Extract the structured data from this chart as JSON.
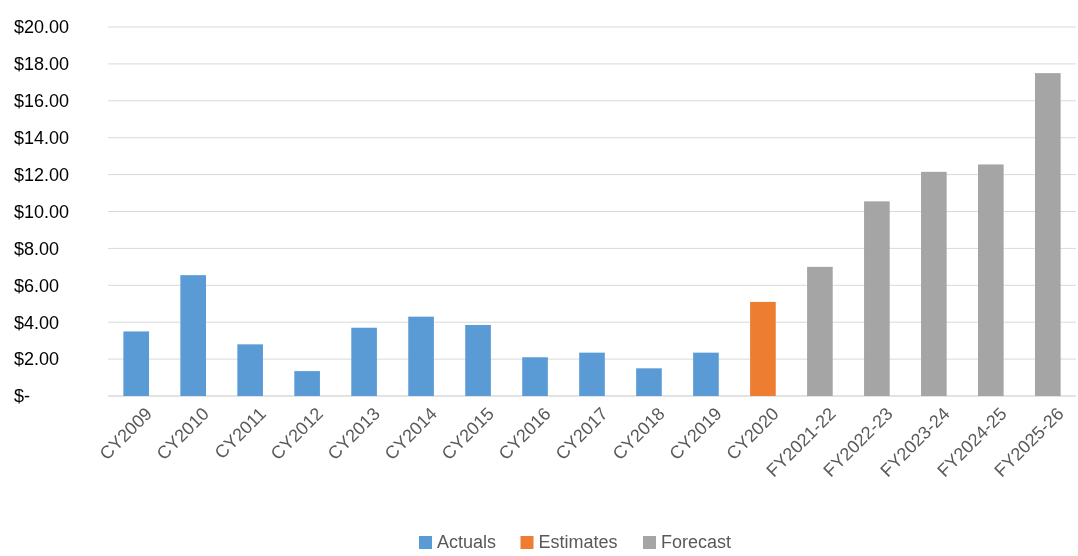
{
  "chart_data": {
    "type": "bar",
    "categories": [
      "CY2009",
      "CY2010",
      "CY2011",
      "CY2012",
      "CY2013",
      "CY2014",
      "CY2015",
      "CY2016",
      "CY2017",
      "CY2018",
      "CY2019",
      "CY2020",
      "FY2021-22",
      "FY2022-23",
      "FY2023-24",
      "FY2024-25",
      "FY2025-26"
    ],
    "series": [
      {
        "name": "Actuals",
        "color": "#5b9bd5",
        "values": [
          3.5,
          6.55,
          2.8,
          1.35,
          3.7,
          4.3,
          3.85,
          2.1,
          2.35,
          1.5,
          2.35,
          null,
          null,
          null,
          null,
          null,
          null
        ]
      },
      {
        "name": "Estimates",
        "color": "#ed7d31",
        "values": [
          null,
          null,
          null,
          null,
          null,
          null,
          null,
          null,
          null,
          null,
          null,
          5.1,
          null,
          null,
          null,
          null,
          null
        ]
      },
      {
        "name": "Forecast",
        "color": "#a5a5a5",
        "values": [
          null,
          null,
          null,
          null,
          null,
          null,
          null,
          null,
          null,
          null,
          null,
          null,
          7.0,
          10.55,
          12.15,
          12.55,
          17.5
        ]
      }
    ],
    "ylim": [
      0,
      20
    ],
    "yticks": [
      {
        "value": 0,
        "label": "$-"
      },
      {
        "value": 2,
        "label": "$2.00"
      },
      {
        "value": 4,
        "label": "$4.00"
      },
      {
        "value": 6,
        "label": "$6.00"
      },
      {
        "value": 8,
        "label": "$8.00"
      },
      {
        "value": 10,
        "label": "$10.00"
      },
      {
        "value": 12,
        "label": "$12.00"
      },
      {
        "value": 14,
        "label": "$14.00"
      },
      {
        "value": 16,
        "label": "$16.00"
      },
      {
        "value": 18,
        "label": "$18.00"
      },
      {
        "value": 20,
        "label": "$20.00"
      }
    ],
    "grid": "y",
    "legend": "bottom"
  }
}
